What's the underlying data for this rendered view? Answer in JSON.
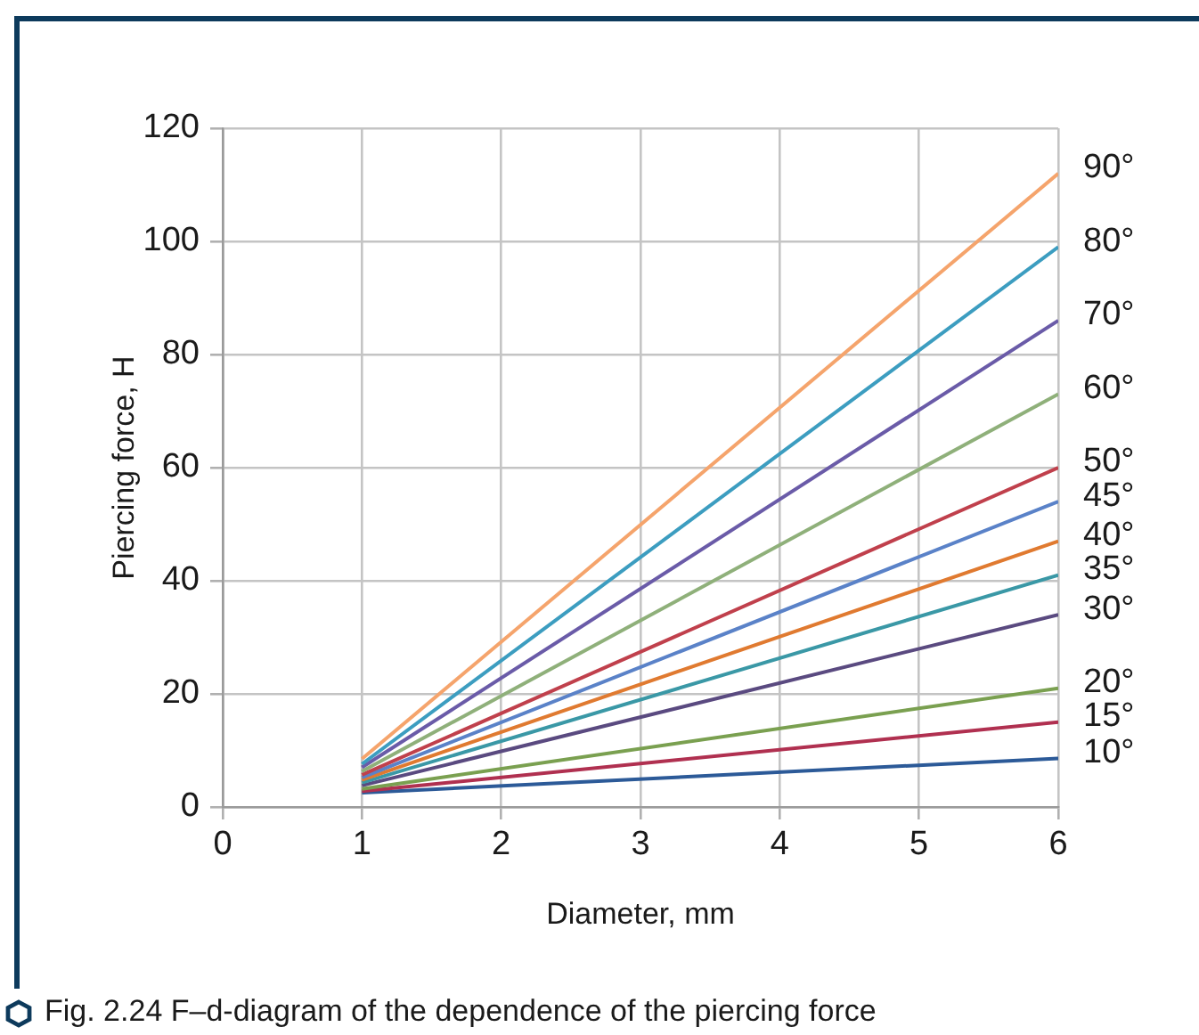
{
  "chart_data": {
    "type": "line",
    "title": "Fig. 2.24  F–d-diagram of the dependence of the piercing force",
    "xlabel": "Diameter, mm",
    "ylabel": "Piercing force, H",
    "xlim": [
      0,
      6
    ],
    "xticks": [
      0,
      1,
      2,
      3,
      4,
      5,
      6
    ],
    "ylim": [
      0,
      120
    ],
    "yticks": [
      0,
      20,
      40,
      60,
      80,
      100,
      120
    ],
    "grid": true,
    "marker": "none",
    "line_style": "solid",
    "x": [
      1,
      6
    ],
    "series": [
      {
        "name": "90°",
        "color": "#f5a46c",
        "values": [
          8.5,
          112
        ]
      },
      {
        "name": "80°",
        "color": "#3c9dc0",
        "values": [
          7.6,
          99
        ]
      },
      {
        "name": "70°",
        "color": "#6a5ba8",
        "values": [
          7,
          86
        ]
      },
      {
        "name": "60°",
        "color": "#8fb07a",
        "values": [
          6.3,
          73
        ]
      },
      {
        "name": "50°",
        "color": "#c0404c",
        "values": [
          5.7,
          60
        ]
      },
      {
        "name": "45°",
        "color": "#5a82c8",
        "values": [
          5.2,
          54
        ]
      },
      {
        "name": "40°",
        "color": "#e07a30",
        "values": [
          4.8,
          47
        ]
      },
      {
        "name": "35°",
        "color": "#3a98a6",
        "values": [
          4.3,
          41
        ]
      },
      {
        "name": "30°",
        "color": "#5a4a80",
        "values": [
          3.8,
          34
        ]
      },
      {
        "name": "20°",
        "color": "#7aa050",
        "values": [
          3.2,
          21
        ]
      },
      {
        "name": "15°",
        "color": "#b03050",
        "values": [
          2.8,
          15
        ]
      },
      {
        "name": "10°",
        "color": "#2c5a98",
        "values": [
          2.5,
          8.6
        ]
      }
    ]
  }
}
